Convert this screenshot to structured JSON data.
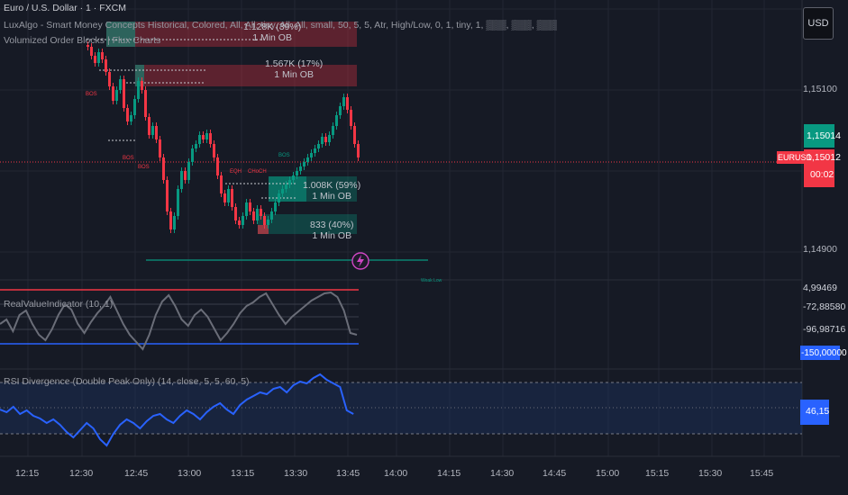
{
  "header": {
    "symbol_line": "Euro / U.S. Dollar · 1 · FXCM",
    "indicator1": "LuxAlgo - Smart Money Concepts  Historical, Colored, All, All, tiny, All, All, small, 50, 5, 5, Atr, High/Low, 0, 1, tiny, 1, ▒▒▒, ▒▒▒, ▒▒▒",
    "indicator2": "Volumized Order Blocks | Flux Charts"
  },
  "currency_button": "USD",
  "order_blocks": [
    {
      "label1": "1.128K (39%)",
      "label2": "1 Min OB"
    },
    {
      "label1": "1.567K (17%)",
      "label2": "1 Min OB"
    },
    {
      "label1": "1.008K (59%)",
      "label2": "1 Min OB"
    },
    {
      "label1": "833 (40%)",
      "label2": "1 Min OB"
    }
  ],
  "structure_labels": [
    "BOS",
    "BOS",
    "BOS",
    "EQH",
    "CHoCH",
    "BOS"
  ],
  "small_caption": "Weak Low",
  "price_axis": {
    "ticks": [
      "1,15100",
      "1,14900"
    ],
    "current_price": "1,15014",
    "symbol_tag": "EURUSD",
    "last_price": "1,15012",
    "countdown": "00:02",
    "colors": {
      "green": "#089981",
      "red": "#f23645"
    }
  },
  "rvi_panel": {
    "title": "RealValueIndicator (10, 1)",
    "values": [
      "4,99469",
      "-72,88580",
      "-96,98716",
      "-150,00000"
    ]
  },
  "rsi_panel": {
    "title": "RSI Divergence (Double Peak Only) (14, close, 5, 5, 60, 5)",
    "value": "46,15"
  },
  "time_axis": [
    "12:15",
    "12:30",
    "12:45",
    "13:00",
    "13:15",
    "13:30",
    "13:45",
    "14:00",
    "14:15",
    "14:30",
    "14:45",
    "15:00",
    "15:15",
    "15:30",
    "15:45"
  ]
}
